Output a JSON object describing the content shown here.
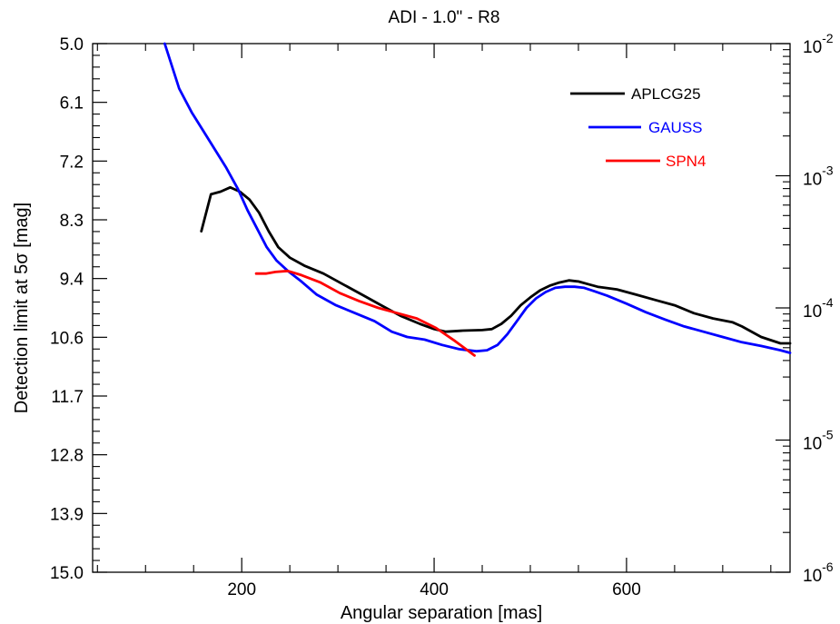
{
  "chart_data": {
    "type": "line",
    "title": "ADI -  1.0\" - R8",
    "xlabel": "Angular separation [mas]",
    "ylabel": "Detection limit at 5σ  [mag]",
    "xlim": [
      45,
      770
    ],
    "ylim": [
      15.0,
      5.0
    ],
    "x_tick_labels": [
      "200",
      "400",
      "600"
    ],
    "x_major_ticks": [
      200,
      400,
      600
    ],
    "x_minor_ticks": [
      50,
      100,
      150,
      250,
      300,
      350,
      450,
      500,
      550,
      650,
      700,
      750
    ],
    "y_tick_labels": [
      "5.0",
      "6.1",
      "7.2",
      "8.3",
      "9.4",
      "10.6",
      "11.7",
      "12.8",
      "13.9",
      "15.0"
    ],
    "right_axis": {
      "scale": "log",
      "range": [
        1e-06,
        0.01
      ],
      "tick_labels": [
        {
          "value": 0.01,
          "mantissa": "10",
          "exponent": "-2"
        },
        {
          "value": 0.001,
          "mantissa": "10",
          "exponent": "-3"
        },
        {
          "value": 0.0001,
          "mantissa": "10",
          "exponent": "-4"
        },
        {
          "value": 1e-05,
          "mantissa": "10",
          "exponent": "-5"
        },
        {
          "value": 1e-06,
          "mantissa": "10",
          "exponent": "-6"
        }
      ]
    },
    "grid": false,
    "legend_position": "top-right",
    "series": [
      {
        "name": "APLCG25",
        "color": "#000000",
        "x": [
          158,
          168,
          178,
          188,
          198,
          208,
          218,
          228,
          238,
          250,
          265,
          285,
          305,
          325,
          345,
          365,
          385,
          400,
          412,
          430,
          450,
          460,
          470,
          480,
          490,
          500,
          510,
          520,
          530,
          540,
          550,
          560,
          570,
          590,
          610,
          630,
          650,
          670,
          690,
          710,
          720,
          740,
          760,
          770
        ],
        "y": [
          8.55,
          7.85,
          7.8,
          7.72,
          7.8,
          7.95,
          8.2,
          8.55,
          8.85,
          9.05,
          9.2,
          9.35,
          9.55,
          9.75,
          9.95,
          10.15,
          10.3,
          10.4,
          10.45,
          10.43,
          10.42,
          10.4,
          10.3,
          10.15,
          9.95,
          9.8,
          9.67,
          9.58,
          9.52,
          9.48,
          9.5,
          9.55,
          9.6,
          9.65,
          9.75,
          9.85,
          9.95,
          10.1,
          10.2,
          10.27,
          10.35,
          10.55,
          10.67,
          10.67
        ]
      },
      {
        "name": "GAUSS",
        "color": "#0000ff",
        "x": [
          120,
          135,
          148,
          160,
          172,
          184,
          196,
          206,
          216,
          226,
          236,
          248,
          262,
          278,
          298,
          318,
          338,
          356,
          372,
          390,
          408,
          426,
          444,
          455,
          466,
          476,
          486,
          496,
          506,
          516,
          526,
          536,
          546,
          556,
          566,
          580,
          600,
          620,
          640,
          660,
          680,
          700,
          720,
          740,
          760,
          770
        ],
        "y": [
          5.0,
          5.85,
          6.3,
          6.65,
          7.0,
          7.35,
          7.75,
          8.15,
          8.5,
          8.85,
          9.1,
          9.3,
          9.5,
          9.75,
          9.95,
          10.1,
          10.25,
          10.45,
          10.55,
          10.6,
          10.7,
          10.78,
          10.82,
          10.8,
          10.7,
          10.5,
          10.25,
          10.0,
          9.82,
          9.7,
          9.62,
          9.6,
          9.6,
          9.62,
          9.68,
          9.77,
          9.92,
          10.08,
          10.22,
          10.35,
          10.45,
          10.55,
          10.65,
          10.72,
          10.8,
          10.85
        ]
      },
      {
        "name": "SPN4",
        "color": "#ff0000",
        "x": [
          215,
          225,
          235,
          248,
          262,
          282,
          302,
          322,
          342,
          362,
          382,
          402,
          422,
          442
        ],
        "y": [
          9.35,
          9.35,
          9.32,
          9.3,
          9.38,
          9.52,
          9.72,
          9.87,
          10.0,
          10.1,
          10.2,
          10.38,
          10.63,
          10.9
        ]
      }
    ]
  }
}
